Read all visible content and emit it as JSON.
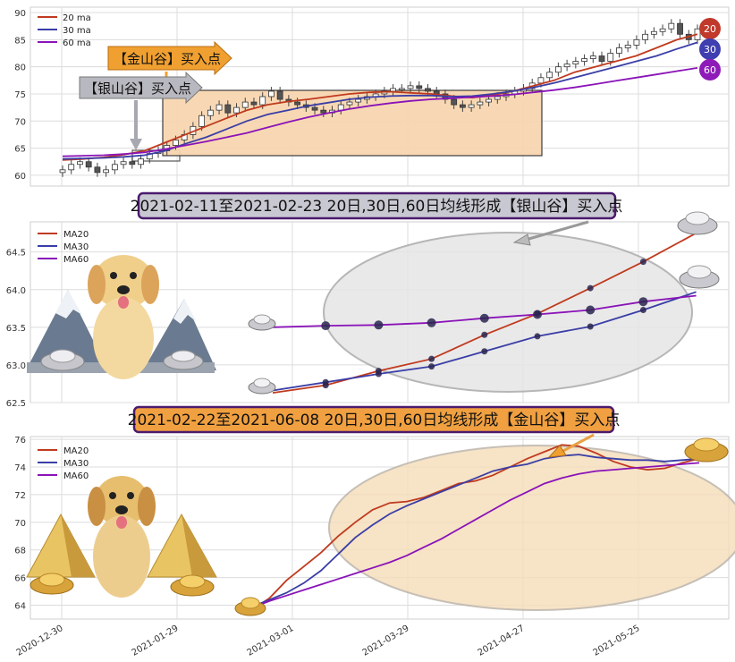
{
  "colors": {
    "ma20": "#c03a1e",
    "ma30": "#3a3ea6",
    "ma60": "#8a13b8",
    "silver_fill": "#e6e6e6",
    "gold_fill": "#f6ddb9",
    "gold_arrow": "#f0a030",
    "silver_arrow": "#b8b8c0",
    "badge20": "#c0392b",
    "badge30": "#3f3fb0",
    "badge60": "#8e1bb8"
  },
  "top_panel": {
    "legend": [
      "20 ma",
      "30 ma",
      "60 ma"
    ],
    "badges": [
      "20",
      "30",
      "60"
    ],
    "arrow_gold_label": "【金山谷】买入点",
    "arrow_silver_label": "【银山谷】买入点"
  },
  "middle_panel": {
    "banner": "2021-02-11至2021-02-23 20日,30日,60日均线形成【银山谷】买入点",
    "legend": [
      "MA20",
      "MA30",
      "MA60"
    ]
  },
  "bottom_panel": {
    "banner": "2021-02-22至2021-06-08 20日,30日,60日均线形成【金山谷】买入点",
    "legend": [
      "MA20",
      "MA30",
      "MA60"
    ]
  },
  "chart_data": [
    {
      "type": "candlestick",
      "ylim": [
        58,
        91
      ],
      "yticks": [
        60,
        65,
        70,
        75,
        80,
        85,
        90
      ],
      "close_approx": [
        61,
        62,
        62.5,
        61.5,
        60.5,
        61,
        62,
        62.5,
        62,
        63,
        64,
        64.5,
        65.5,
        66.5,
        67.5,
        69,
        71,
        72,
        73,
        71.5,
        72.5,
        73.5,
        73,
        74.5,
        75.5,
        74,
        73.5,
        73,
        72.5,
        72,
        71.5,
        72,
        73,
        73.5,
        74,
        74.5,
        75,
        75.5,
        76,
        76,
        76.5,
        76,
        75.5,
        75,
        74,
        73,
        72.5,
        73,
        73.5,
        74,
        74.5,
        75,
        75.5,
        76,
        77,
        78,
        79,
        80,
        80.5,
        81,
        81.5,
        82,
        81,
        82.5,
        83.5,
        84,
        85,
        86,
        86.5,
        87,
        88,
        86,
        85,
        87
      ],
      "ma20": [
        62.8,
        63,
        63.3,
        63.8,
        64.5,
        66,
        67.5,
        69,
        70.5,
        72,
        73,
        73.6,
        74,
        74.5,
        75,
        75.3,
        75.4,
        75.2,
        75,
        74.6,
        74.3,
        74.8,
        75.5,
        76.5,
        77.5,
        79,
        80,
        81,
        82,
        83.5,
        85,
        86
      ],
      "ma30": [
        63,
        63.1,
        63.2,
        63.4,
        63.7,
        64.5,
        65.8,
        67,
        68.5,
        70,
        71.2,
        72,
        72.8,
        73.4,
        74,
        74.4,
        74.6,
        74.7,
        74.7,
        74.5,
        74.6,
        75,
        75.5,
        76.2,
        77,
        78,
        79,
        80,
        81,
        82,
        83.3,
        84.5
      ],
      "ma60": [
        63.5,
        63.6,
        63.7,
        63.9,
        64.2,
        64.8,
        65.5,
        66.2,
        67,
        67.8,
        68.8,
        69.8,
        70.7,
        71.5,
        72.2,
        72.8,
        73.3,
        73.7,
        74,
        74.2,
        74.4,
        74.6,
        74.9,
        75.3,
        75.7,
        76.2,
        76.8,
        77.4,
        78,
        78.6,
        79.2,
        79.8
      ]
    },
    {
      "type": "line",
      "ylim": [
        62.5,
        64.9
      ],
      "yticks": [
        62.5,
        63.0,
        63.5,
        64.0,
        64.5
      ],
      "series": [
        {
          "name": "MA20",
          "values": [
            62.63,
            62.73,
            62.92,
            63.08,
            63.4,
            63.68,
            64.02,
            64.37,
            64.75
          ]
        },
        {
          "name": "MA30",
          "values": [
            62.66,
            62.77,
            62.88,
            62.98,
            63.18,
            63.38,
            63.51,
            63.73,
            63.97
          ]
        },
        {
          "name": "MA60",
          "values": [
            63.5,
            63.52,
            63.53,
            63.56,
            63.62,
            63.67,
            63.73,
            63.84,
            63.92
          ]
        }
      ]
    },
    {
      "type": "line",
      "ylim": [
        63,
        76.2
      ],
      "yticks": [
        64,
        66,
        68,
        70,
        72,
        74,
        76
      ],
      "x_tick_labels": [
        "2020-12-30",
        "2021-01-29",
        "2021-03-01",
        "2021-03-29",
        "2021-04-27",
        "2021-05-25"
      ],
      "series": [
        {
          "name": "MA20",
          "values": [
            63.7,
            64.5,
            65.8,
            66.8,
            67.8,
            69.0,
            70.0,
            70.9,
            71.4,
            71.5,
            71.8,
            72.3,
            72.8,
            73.0,
            73.4,
            74.0,
            74.6,
            75.1,
            75.6,
            75.5,
            75.0,
            74.4,
            74.0,
            73.8,
            73.9,
            74.3,
            74.6
          ]
        },
        {
          "name": "MA30",
          "values": [
            63.9,
            64.4,
            64.9,
            65.6,
            66.5,
            67.7,
            68.9,
            69.8,
            70.6,
            71.2,
            71.7,
            72.2,
            72.7,
            73.2,
            73.7,
            74.0,
            74.2,
            74.6,
            74.8,
            74.9,
            74.7,
            74.6,
            74.5,
            74.5,
            74.4,
            74.5,
            74.6
          ]
        },
        {
          "name": "MA60",
          "values": [
            63.8,
            64.3,
            64.7,
            65.1,
            65.5,
            65.9,
            66.3,
            66.7,
            67.1,
            67.6,
            68.2,
            68.8,
            69.5,
            70.2,
            70.9,
            71.6,
            72.2,
            72.8,
            73.2,
            73.5,
            73.7,
            73.8,
            73.9,
            74.0,
            74.1,
            74.2,
            74.3
          ]
        }
      ]
    }
  ]
}
